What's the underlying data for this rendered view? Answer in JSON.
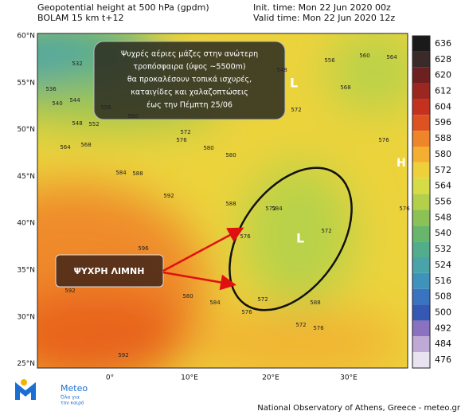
{
  "header": {
    "left": [
      "Geopotential height at 500 hPa (gpdm)",
      "BOLAM 15 km t+12"
    ],
    "right": [
      "Init. time: Mon 22 Jun 2020 00z",
      "Valid time: Mon 22 Jun 2020 12z"
    ]
  },
  "map": {
    "lat_labels": [
      "60°N",
      "55°N",
      "50°N",
      "45°N",
      "40°N",
      "35°N",
      "30°N",
      "25°N"
    ],
    "lon_labels": [
      "0°",
      "10°E",
      "20°E",
      "30°E"
    ],
    "pressure_labels": [
      "L",
      "L",
      "H"
    ],
    "contour_labels": [
      532,
      536,
      540,
      544,
      548,
      552,
      556,
      560,
      564,
      568,
      572,
      576,
      580,
      584,
      588,
      592,
      596,
      548,
      556,
      560,
      564,
      568,
      572,
      576,
      580,
      584,
      588,
      576,
      572,
      572,
      572,
      576,
      580,
      584,
      588,
      576,
      572,
      576,
      592,
      592
    ],
    "annotation": [
      "Ψυχρές αέριες μάζες στην ανώτερη",
      "τροπόσφαιρα (ύψος ~5500m)",
      "θα προκαλέσουν τοπικά ισχυρές,",
      "καταιγίδες και χαλαζοπτώσεις",
      "έως την Πέμπτη 25/06"
    ],
    "cold_lake": "ΨΥΧΡΗ ΛΙΜΝΗ"
  },
  "colorbar": {
    "levels": [
      636,
      628,
      620,
      612,
      604,
      596,
      588,
      580,
      572,
      564,
      556,
      548,
      540,
      532,
      524,
      516,
      508,
      500,
      492,
      484,
      476
    ],
    "colors": [
      "#1a1a1a",
      "#3a2a2a",
      "#6e1f1f",
      "#9c2620",
      "#c4311f",
      "#dd5220",
      "#ef8529",
      "#f4ae31",
      "#eed13a",
      "#d6dc46",
      "#b3d04b",
      "#8cc255",
      "#68b66c",
      "#52ad8c",
      "#48a4a8",
      "#3e93bd",
      "#3a73bf",
      "#3458b3",
      "#8b72c0",
      "#bfa9d6",
      "#e9e2f0"
    ]
  },
  "logo": {
    "name": "Meteo",
    "tagline": [
      "Όλα για",
      "τον καιρό"
    ]
  },
  "footer": "National Observatory of Athens, Greece - meteo.gr"
}
